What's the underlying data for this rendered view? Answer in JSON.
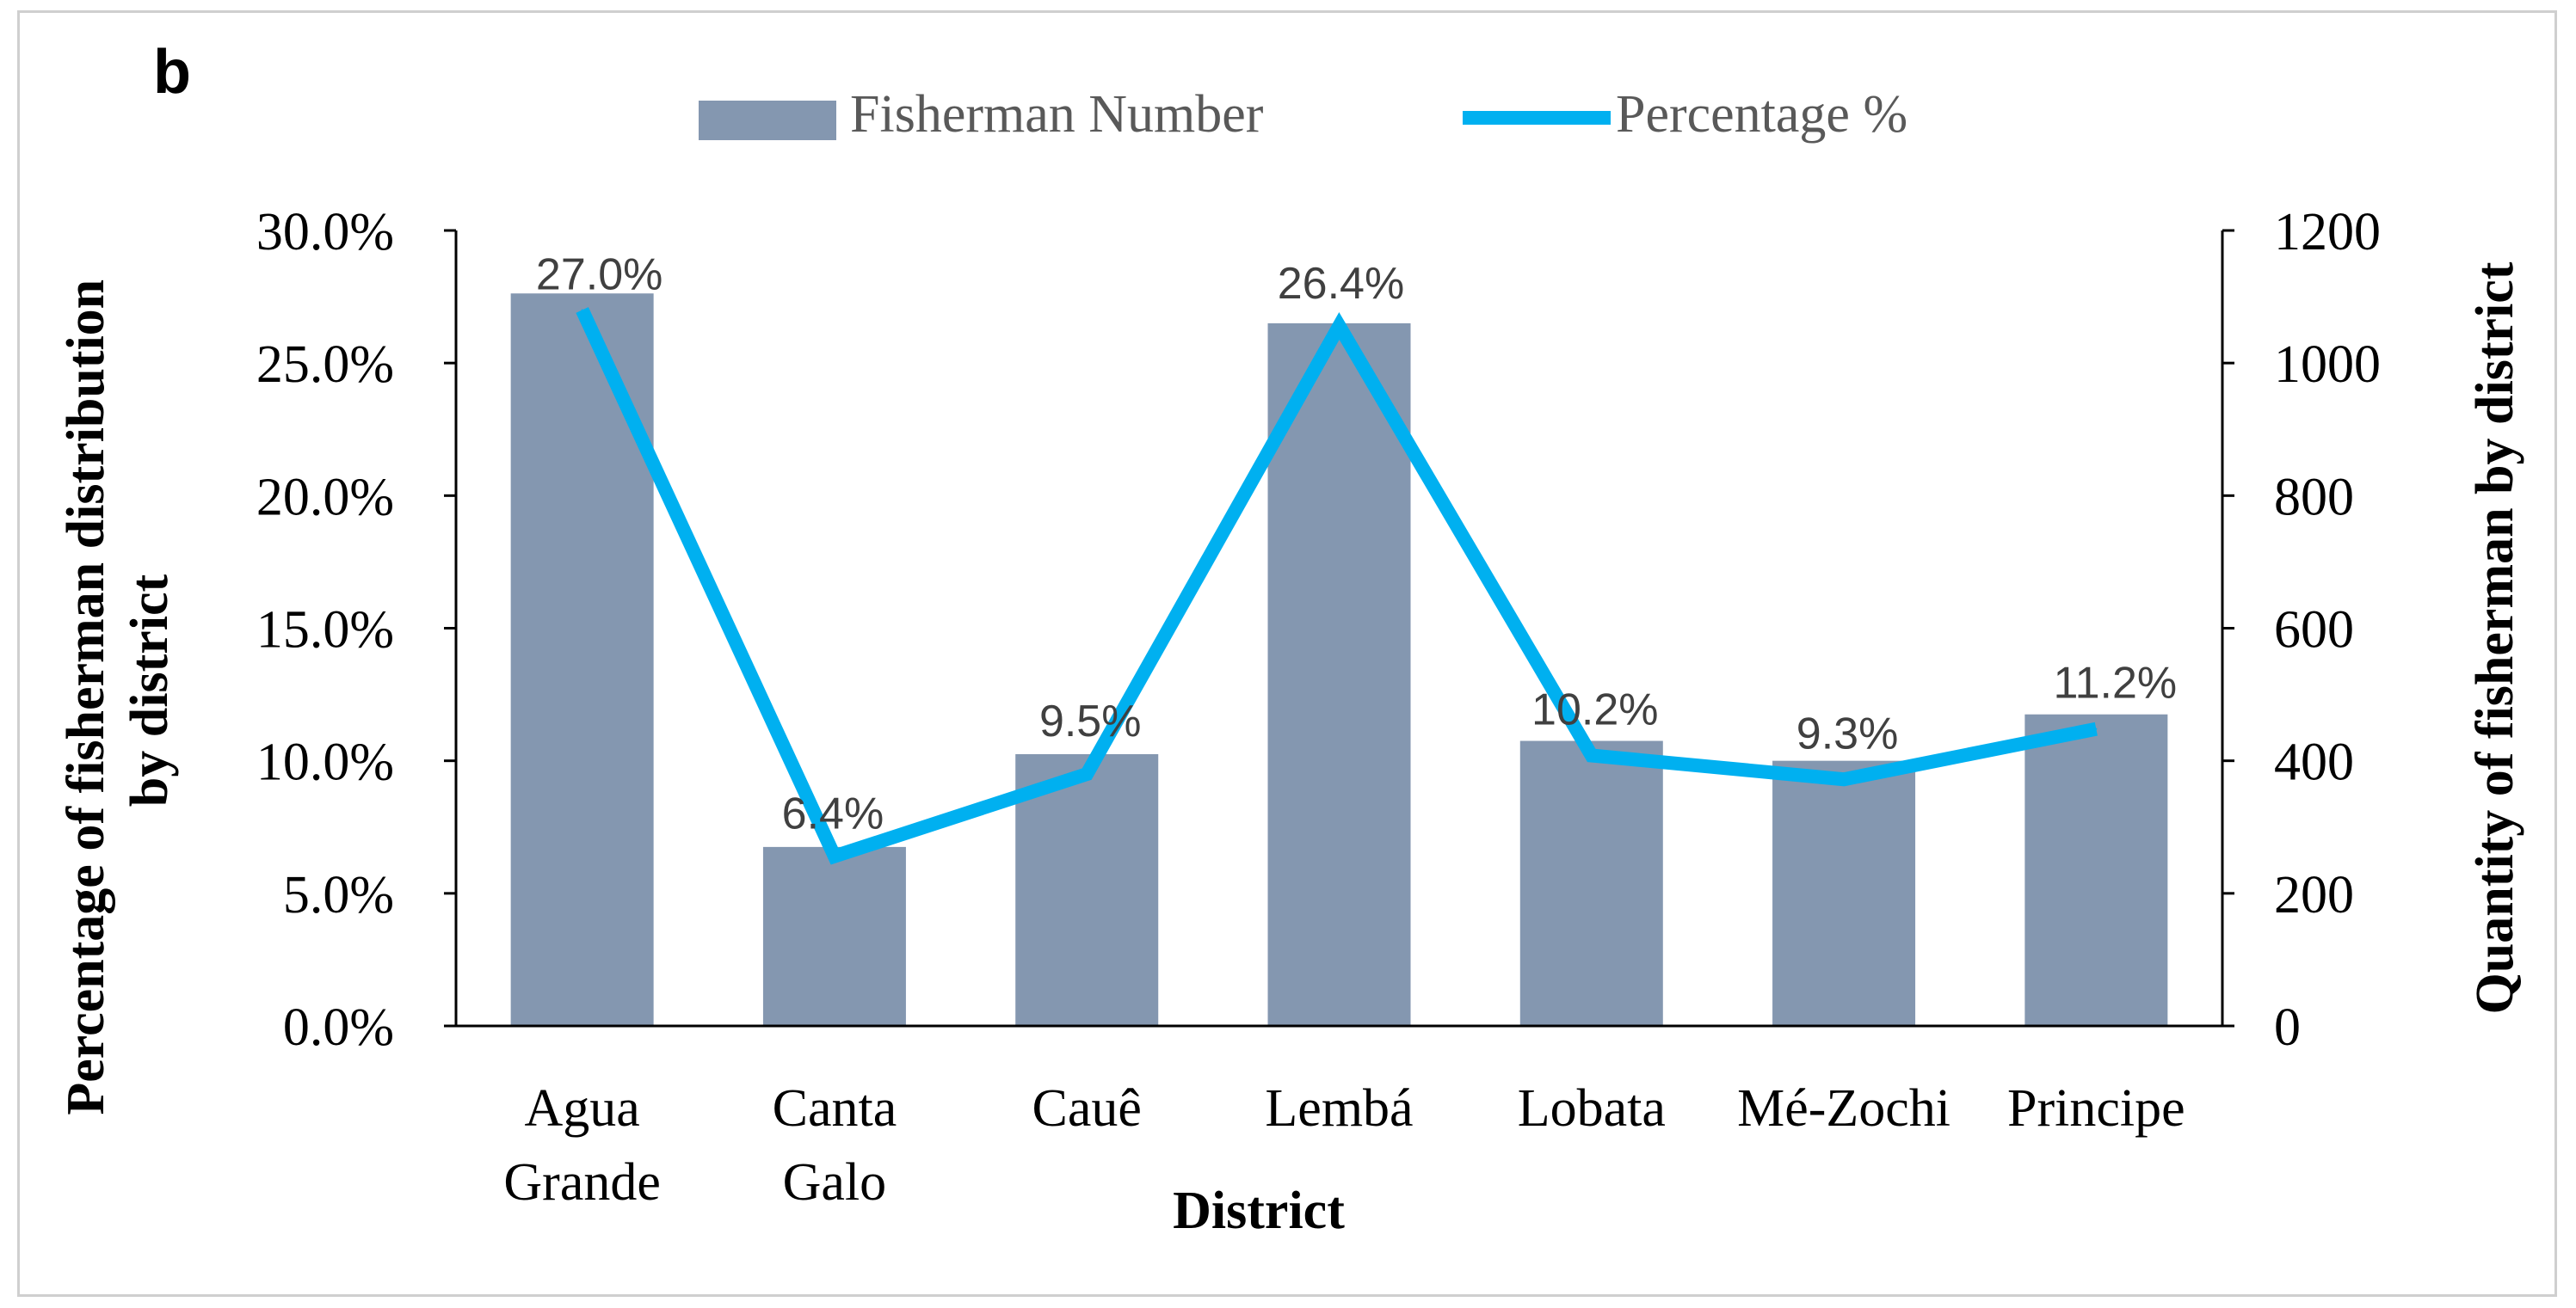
{
  "panel_label": "b",
  "chart_data": {
    "type": "bar+line",
    "categories": [
      "Agua Grande",
      "Canta Galo",
      "Cauê",
      "Lembá",
      "Lobata",
      "Mé-Zochi",
      "Principe"
    ],
    "category_lines": [
      [
        "Agua",
        "Grande"
      ],
      [
        "Canta",
        "Galo"
      ],
      [
        "Cauê"
      ],
      [
        "Lembá"
      ],
      [
        "Lobata"
      ],
      [
        "Mé-Zochi"
      ],
      [
        "Principe"
      ]
    ],
    "series": [
      {
        "name": "Fisherman Number",
        "type": "bar",
        "axis": "right",
        "color": "#8497b0",
        "values": [
          1105,
          270,
          410,
          1060,
          430,
          400,
          470
        ]
      },
      {
        "name": "Percentage %",
        "type": "line",
        "axis": "left",
        "color": "#00b0f0",
        "values": [
          27.0,
          6.4,
          9.5,
          26.4,
          10.2,
          9.3,
          11.2
        ],
        "data_labels": [
          "27.0%",
          "6.4%",
          "9.5%",
          "26.4%",
          "10.2%",
          "9.3%",
          "11.2%"
        ]
      }
    ],
    "xlabel": "District",
    "ylabel_left_lines": [
      "Percentage of fisherman distribution",
      "by district"
    ],
    "ylabel_right": "Quantity of fisherman by district",
    "ylim_left": [
      0,
      30
    ],
    "ylim_right": [
      0,
      1200
    ],
    "left_ticks": [
      "0.0%",
      "5.0%",
      "10.0%",
      "15.0%",
      "20.0%",
      "25.0%",
      "30.0%"
    ],
    "right_ticks": [
      "0",
      "200",
      "400",
      "600",
      "800",
      "1000",
      "1200"
    ],
    "legend_position": "top-center",
    "grid": false
  }
}
